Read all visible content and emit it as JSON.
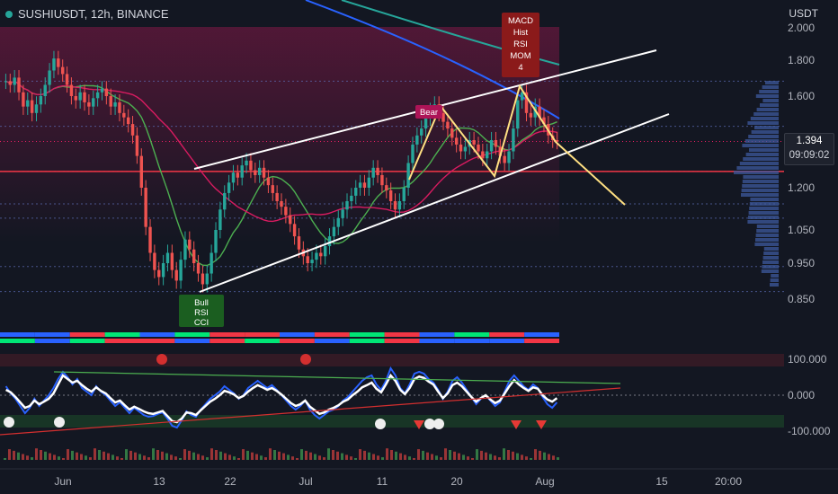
{
  "header": {
    "symbol": "SUSHIUSDT, 12h, BINANCE",
    "currency": "USDT"
  },
  "price_label": {
    "value": "1.394",
    "countdown": "09:09:02"
  },
  "signals": {
    "bear_label": "Bear",
    "top_box": [
      "MACD",
      "Hist",
      "RSI",
      "MOM",
      "4"
    ],
    "bull_box": [
      "Bull",
      "RSI",
      "CCI"
    ]
  },
  "colors": {
    "background": "#131722",
    "up": "#26a69a",
    "down": "#ef5350",
    "channel": "#ffffff",
    "pattern": "#ffe082",
    "support": "#f23645"
  },
  "chart_data": [
    {
      "type": "candlestick",
      "x_ticks": [
        "Jun",
        "13",
        "22",
        "Jul",
        "11",
        "20",
        "Aug",
        "15",
        "20:00"
      ],
      "y_ticks": [
        "0.850",
        "0.950",
        "1.050",
        "1.200",
        "1.400",
        "1.600",
        "1.800",
        "2.000"
      ],
      "y_range": [
        0.82,
        2.05
      ],
      "y_scale": "log",
      "last_price": 1.394,
      "support_level": 1.265,
      "dotted_levels": [
        1.68,
        1.46,
        1.265,
        1.14,
        1.09,
        0.94,
        0.87
      ],
      "closes": [
        1.68,
        1.66,
        1.7,
        1.62,
        1.55,
        1.58,
        1.52,
        1.56,
        1.6,
        1.66,
        1.74,
        1.81,
        1.76,
        1.72,
        1.66,
        1.6,
        1.58,
        1.62,
        1.57,
        1.55,
        1.59,
        1.62,
        1.64,
        1.6,
        1.55,
        1.57,
        1.52,
        1.5,
        1.47,
        1.42,
        1.33,
        1.2,
        1.06,
        0.98,
        0.93,
        0.91,
        0.95,
        0.98,
        0.93,
        0.9,
        0.96,
        1.02,
        0.99,
        0.95,
        0.92,
        0.89,
        0.92,
        0.98,
        1.05,
        1.12,
        1.18,
        1.22,
        1.26,
        1.24,
        1.29,
        1.31,
        1.27,
        1.25,
        1.28,
        1.24,
        1.21,
        1.18,
        1.15,
        1.13,
        1.1,
        1.07,
        1.03,
        0.99,
        0.97,
        0.95,
        0.96,
        0.98,
        0.97,
        1.0,
        1.03,
        1.06,
        1.09,
        1.12,
        1.15,
        1.17,
        1.2,
        1.22,
        1.2,
        1.24,
        1.28,
        1.25,
        1.21,
        1.19,
        1.15,
        1.12,
        1.15,
        1.2,
        1.3,
        1.38,
        1.42,
        1.45,
        1.5,
        1.53,
        1.56,
        1.52,
        1.48,
        1.45,
        1.41,
        1.38,
        1.35,
        1.37,
        1.4,
        1.38,
        1.35,
        1.32,
        1.35,
        1.4,
        1.37,
        1.33,
        1.3,
        1.35,
        1.45,
        1.58,
        1.62,
        1.52,
        1.5,
        1.55,
        1.5,
        1.47,
        1.42,
        1.4,
        1.394
      ],
      "indicators": {
        "moving_averages": [
          "green",
          "magenta",
          "blue",
          "teal"
        ],
        "channel": "ascending",
        "pattern": "W"
      }
    },
    {
      "type": "line",
      "y_ticks": [
        "100.000",
        "0.000",
        "-100.000"
      ],
      "y_range": [
        -120,
        120
      ],
      "series": [
        {
          "color": "#ffffff",
          "values": [
            15,
            8,
            -5,
            -20,
            -35,
            -30,
            -15,
            -25,
            -18,
            -10,
            5,
            30,
            55,
            45,
            35,
            40,
            28,
            18,
            10,
            22,
            12,
            5,
            -8,
            -20,
            -15,
            -28,
            -40,
            -32,
            -38,
            -45,
            -50,
            -52,
            -48,
            -44,
            -58,
            -72,
            -75,
            -65,
            -48,
            -50,
            -55,
            -42,
            -30,
            -18,
            -10,
            0,
            12,
            8,
            2,
            -8,
            -2,
            10,
            20,
            28,
            22,
            15,
            20,
            12,
            2,
            -10,
            -22,
            -30,
            -25,
            -15,
            -32,
            -42,
            -52,
            -48,
            -40,
            -35,
            -28,
            -18,
            -12,
            0,
            10,
            22,
            28,
            35,
            18,
            8,
            30,
            55,
            40,
            15,
            3,
            20,
            45,
            52,
            48,
            38,
            30,
            10,
            -8,
            5,
            28,
            35,
            25,
            10,
            -5,
            -18,
            -8,
            0,
            -12,
            -22,
            -15,
            5,
            25,
            42,
            30,
            20,
            12,
            22,
            18,
            0,
            -12,
            -18,
            -8
          ]
        },
        {
          "color": "#2962ff",
          "values": [
            25,
            5,
            -10,
            -30,
            -50,
            -35,
            -10,
            -30,
            -15,
            0,
            20,
            45,
            65,
            50,
            30,
            45,
            20,
            10,
            0,
            25,
            10,
            0,
            -15,
            -30,
            -20,
            -35,
            -50,
            -35,
            -45,
            -55,
            -60,
            -58,
            -52,
            -48,
            -65,
            -85,
            -90,
            -70,
            -45,
            -55,
            -60,
            -40,
            -25,
            -10,
            0,
            10,
            25,
            15,
            5,
            -10,
            0,
            20,
            30,
            40,
            30,
            20,
            28,
            15,
            0,
            -15,
            -30,
            -40,
            -30,
            -15,
            -40,
            -55,
            -65,
            -55,
            -45,
            -40,
            -30,
            -15,
            -5,
            10,
            25,
            40,
            50,
            55,
            30,
            15,
            40,
            75,
            55,
            20,
            5,
            30,
            60,
            65,
            60,
            45,
            35,
            15,
            -10,
            10,
            40,
            50,
            35,
            15,
            -5,
            -25,
            -10,
            0,
            -15,
            -30,
            -20,
            10,
            40,
            55,
            40,
            25,
            15,
            30,
            20,
            -5,
            -25,
            -35,
            -20
          ]
        }
      ]
    }
  ]
}
